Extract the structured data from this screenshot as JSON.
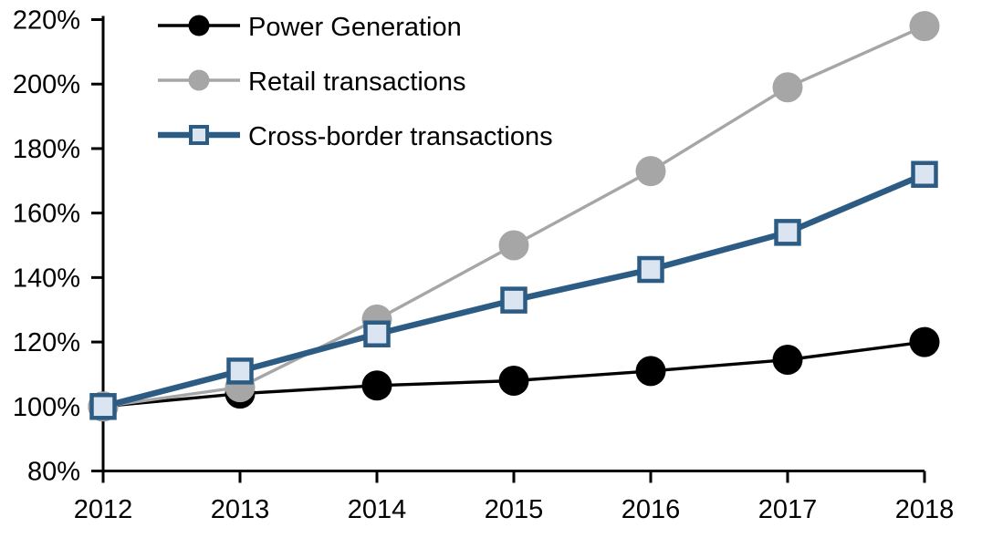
{
  "chart_data": {
    "type": "line",
    "title": "",
    "xlabel": "",
    "ylabel": "",
    "x": [
      2012,
      2013,
      2014,
      2015,
      2016,
      2017,
      2018
    ],
    "xticks_labels": [
      "2012",
      "2013",
      "2014",
      "2015",
      "2016",
      "2017",
      "2018"
    ],
    "ylim": [
      80,
      220
    ],
    "ytick_step": 20,
    "yticks_labels": [
      "80%",
      "100%",
      "120%",
      "140%",
      "160%",
      "180%",
      "200%",
      "220%"
    ],
    "grid": false,
    "legend_position": "top-left",
    "series": [
      {
        "name": "Power Generation",
        "values": [
          100,
          104,
          106.5,
          108,
          111,
          114.5,
          120
        ],
        "color": "#000000",
        "marker": "circle",
        "marker_fill": "#000000",
        "line_width": 3.4
      },
      {
        "name": "Retail transactions",
        "values": [
          100,
          106,
          127,
          150,
          173,
          199,
          218
        ],
        "color": "#a6a6a6",
        "marker": "circle",
        "marker_fill": "#a6a6a6",
        "line_width": 3.4
      },
      {
        "name": "Cross-border transactions",
        "values": [
          100,
          111,
          122.5,
          133,
          142.5,
          154,
          172
        ],
        "color": "#2c5b84",
        "marker": "square",
        "marker_fill": "#dbe5f1",
        "line_width": 6.5
      }
    ],
    "colors": {
      "axis": "#000000",
      "background": "#ffffff"
    }
  }
}
